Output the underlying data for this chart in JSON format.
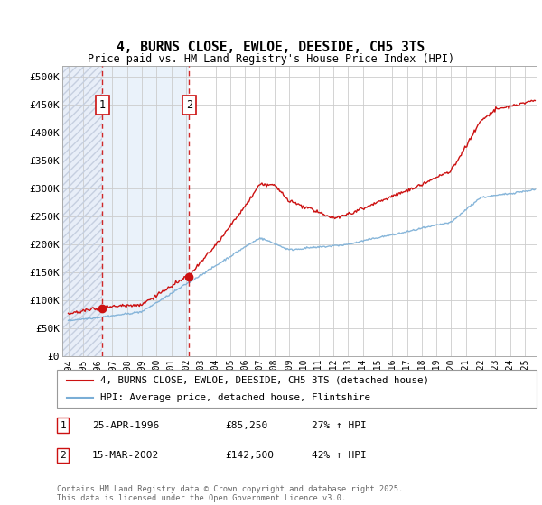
{
  "title": "4, BURNS CLOSE, EWLOE, DEESIDE, CH5 3TS",
  "subtitle": "Price paid vs. HM Land Registry's House Price Index (HPI)",
  "ylim": [
    0,
    520000
  ],
  "yticks": [
    0,
    50000,
    100000,
    150000,
    200000,
    250000,
    300000,
    350000,
    400000,
    450000,
    500000
  ],
  "ytick_labels": [
    "£0",
    "£50K",
    "£100K",
    "£150K",
    "£200K",
    "£250K",
    "£300K",
    "£350K",
    "£400K",
    "£450K",
    "£500K"
  ],
  "xlim_start": 1993.6,
  "xlim_end": 2025.8,
  "xticks": [
    1994,
    1995,
    1996,
    1997,
    1998,
    1999,
    2000,
    2001,
    2002,
    2003,
    2004,
    2005,
    2006,
    2007,
    2008,
    2009,
    2010,
    2011,
    2012,
    2013,
    2014,
    2015,
    2016,
    2017,
    2018,
    2019,
    2020,
    2021,
    2022,
    2023,
    2024,
    2025
  ],
  "hpi_color": "#7aaed6",
  "price_color": "#cc1111",
  "sale1_x": 1996.32,
  "sale1_y": 85250,
  "sale2_x": 2002.21,
  "sale2_y": 142500,
  "legend_line1": "4, BURNS CLOSE, EWLOE, DEESIDE, CH5 3TS (detached house)",
  "legend_line2": "HPI: Average price, detached house, Flintshire",
  "sale1_date": "25-APR-1996",
  "sale1_price": "£85,250",
  "sale1_hpi": "27% ↑ HPI",
  "sale2_date": "15-MAR-2002",
  "sale2_price": "£142,500",
  "sale2_hpi": "42% ↑ HPI",
  "footer": "Contains HM Land Registry data © Crown copyright and database right 2025.\nThis data is licensed under the Open Government Licence v3.0."
}
